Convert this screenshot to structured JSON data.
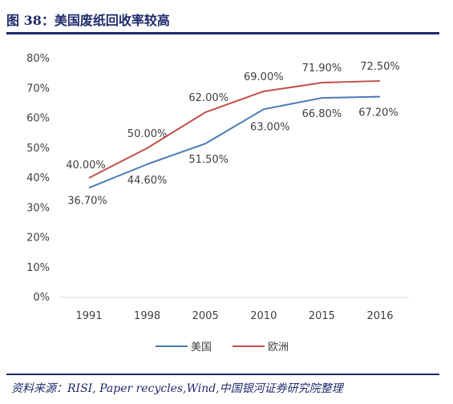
{
  "figure": {
    "title": "图 38：美国废纸回收率较高",
    "source": "资料来源：RISI, Paper recycles,Wind,中国银河证券研究院整理"
  },
  "chart_data": {
    "type": "line",
    "title": "",
    "xlabel": "",
    "ylabel": "",
    "categories": [
      "1991",
      "1998",
      "2005",
      "2010",
      "2015",
      "2016"
    ],
    "ylim": [
      0,
      80
    ],
    "yticks": [
      "0%",
      "10%",
      "20%",
      "30%",
      "40%",
      "50%",
      "60%",
      "70%",
      "80%"
    ],
    "grid": false,
    "legend_position": "bottom",
    "series": [
      {
        "name": "美国",
        "color": "#4a7ab5",
        "values": [
          36.7,
          44.6,
          51.5,
          63.0,
          66.8,
          67.2
        ],
        "labels": [
          "36.70%",
          "44.60%",
          "51.50%",
          "63.00%",
          "66.80%",
          "67.20%"
        ]
      },
      {
        "name": "欧洲",
        "color": "#c0504d",
        "values": [
          40.0,
          50.0,
          62.0,
          69.0,
          71.9,
          72.5
        ],
        "labels": [
          "40.00%",
          "50.00%",
          "62.00%",
          "69.00%",
          "71.90%",
          "72.50%"
        ]
      }
    ]
  }
}
